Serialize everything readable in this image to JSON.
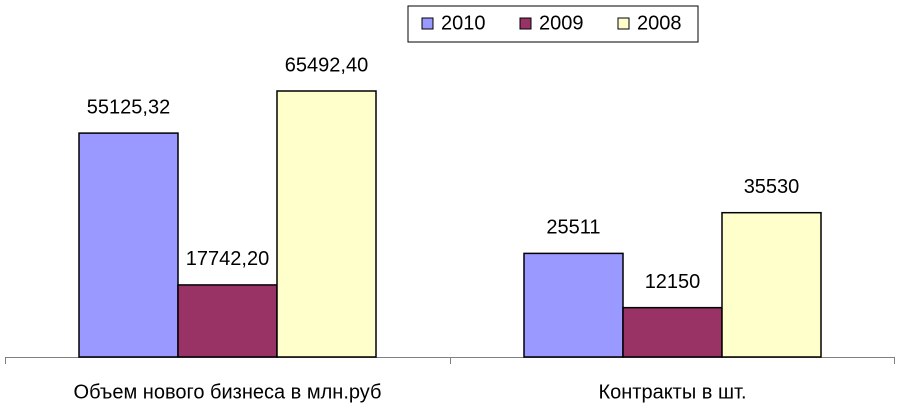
{
  "chart_data": {
    "type": "bar",
    "categories": [
      "Объем нового бизнеса в млн.руб",
      "Контракты в шт."
    ],
    "series": [
      {
        "name": "2010",
        "color": "#9999ff",
        "values": [
          55125.32,
          25511
        ],
        "value_labels": [
          "55125,32",
          "25511"
        ]
      },
      {
        "name": "2009",
        "color": "#993366",
        "values": [
          17742.2,
          12150
        ],
        "value_labels": [
          "17742,20",
          "12150"
        ]
      },
      {
        "name": "2008",
        "color": "#ffffcc",
        "values": [
          65492.4,
          35530
        ],
        "value_labels": [
          "65492,40",
          "35530"
        ]
      }
    ],
    "legend": "top-right"
  }
}
